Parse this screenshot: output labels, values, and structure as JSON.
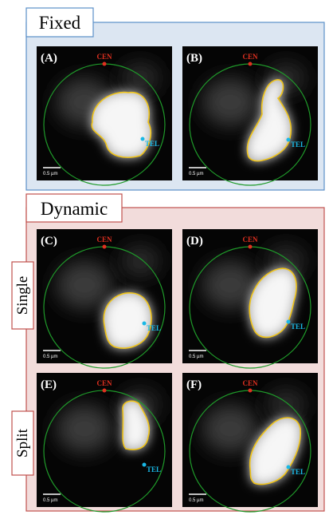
{
  "fixed": {
    "title": "Fixed",
    "panels": [
      {
        "label": "(A)",
        "cen": "CEN",
        "tel": "TEL",
        "scale_bar": "0.5 µm"
      },
      {
        "label": "(B)",
        "cen": "CEN",
        "tel": "TEL",
        "scale_bar": "0.5 µm"
      }
    ]
  },
  "dynamic": {
    "title": "Dynamic",
    "rows": [
      {
        "label": "Single",
        "panels": [
          {
            "label": "(C)",
            "cen": "CEN",
            "tel": "TEL",
            "scale_bar": "0.5 µm"
          },
          {
            "label": "(D)",
            "cen": "CEN",
            "tel": "TEL",
            "scale_bar": "0.5 µm"
          }
        ]
      },
      {
        "label": "Split",
        "panels": [
          {
            "label": "(E)",
            "cen": "CEN",
            "tel": "TEL",
            "scale_bar": "0.5 µm"
          },
          {
            "label": "(F)",
            "cen": "CEN",
            "tel": "TEL",
            "scale_bar": "0.5 µm"
          }
        ]
      }
    ]
  }
}
